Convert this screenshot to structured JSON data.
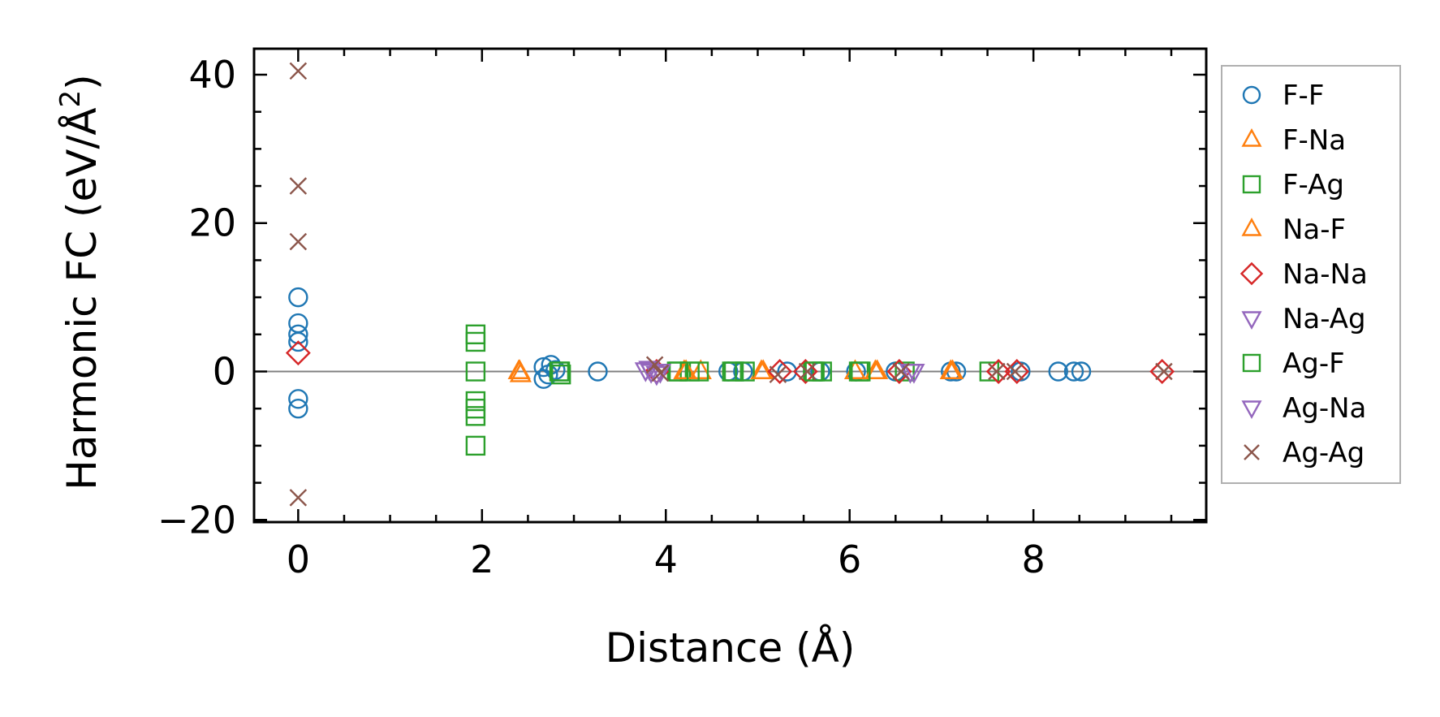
{
  "chart_data": {
    "type": "scatter",
    "title": "",
    "xlabel": "Distance (Å)",
    "ylabel_main": "Harmonic FC (eV/Å",
    "ylabel_sup": "2",
    "ylabel_close": ")",
    "xlim": [
      -0.48,
      9.88
    ],
    "ylim": [
      -20.3,
      43.5
    ],
    "xticks": [
      0,
      2,
      4,
      6,
      8
    ],
    "xtick_labels": [
      "0",
      "2",
      "4",
      "6",
      "8"
    ],
    "yticks": [
      -20,
      0,
      20,
      40
    ],
    "ytick_labels": [
      "−20",
      "0",
      "20",
      "40"
    ],
    "grid": false,
    "zero_line": 0,
    "legend_position": "outside-right",
    "colors": {
      "blue": "#1f77b4",
      "orange": "#ff7f0e",
      "green": "#2ca02c",
      "red": "#d62728",
      "purple": "#9467bd",
      "brown": "#8c564b",
      "zero_line": "#808080"
    },
    "series": [
      {
        "name": "F-F",
        "marker": "circle",
        "color": "#1f77b4",
        "x": [
          0,
          0,
          0,
          0,
          0,
          0,
          2.67,
          2.67,
          2.72,
          2.75,
          2.8,
          3.26,
          4.68,
          4.84,
          5.32,
          5.68,
          6.07,
          6.5,
          7.1,
          7.16,
          7.86,
          8.27,
          8.44,
          8.52
        ],
        "y": [
          10,
          6.5,
          5,
          4,
          -3.7,
          -5,
          -1,
          0.6,
          -0.4,
          0.9,
          0.2,
          0,
          0,
          0,
          0,
          0,
          0,
          0,
          0,
          0,
          0,
          0,
          0,
          0
        ]
      },
      {
        "name": "F-Na",
        "marker": "triangle-up",
        "color": "#ff7f0e",
        "x": [
          2.4,
          2.42,
          4.2,
          4.38,
          5.04,
          6.06,
          6.3,
          7.1
        ],
        "y": [
          0,
          -0.4,
          0,
          0,
          0,
          0,
          0,
          0
        ]
      },
      {
        "name": "F-Ag",
        "marker": "square",
        "color": "#2ca02c",
        "x": [
          1.93,
          1.93,
          1.93,
          1.93,
          1.93,
          1.93,
          2.84,
          2.86,
          4.12,
          4.26,
          4.36,
          4.72,
          4.86,
          5.6,
          5.7,
          6.1,
          6.6,
          7.52
        ],
        "y": [
          5,
          4,
          -4,
          -5,
          -6,
          -10,
          0,
          -0.4,
          0,
          0,
          0,
          0,
          0,
          0,
          0,
          0,
          0,
          0
        ]
      },
      {
        "name": "Na-F",
        "marker": "triangle-up",
        "color": "#ff7f0e",
        "x": [
          2.41,
          4.22,
          5.06,
          6.28,
          7.12
        ],
        "y": [
          0,
          0,
          0,
          0,
          0
        ]
      },
      {
        "name": "Na-Na",
        "marker": "diamond",
        "color": "#d62728",
        "x": [
          0,
          3.9,
          5.24,
          5.52,
          6.54,
          7.62,
          7.82,
          9.4
        ],
        "y": [
          2.5,
          0,
          0,
          0,
          0,
          0,
          0,
          0
        ]
      },
      {
        "name": "Na-Ag",
        "marker": "triangle-down",
        "color": "#9467bd",
        "x": [
          3.78,
          3.84,
          3.9,
          6.7
        ],
        "y": [
          0.2,
          0,
          -0.3,
          0
        ]
      },
      {
        "name": "Ag-F",
        "marker": "square",
        "color": "#2ca02c",
        "x": [
          1.93,
          2.85,
          4.14,
          4.74,
          5.62,
          6.12
        ],
        "y": [
          0,
          0,
          0,
          0,
          0,
          0
        ]
      },
      {
        "name": "Ag-Na",
        "marker": "triangle-down",
        "color": "#9467bd",
        "x": [
          3.82,
          3.94,
          6.66
        ],
        "y": [
          0.4,
          0,
          0
        ]
      },
      {
        "name": "Ag-Ag",
        "marker": "x",
        "color": "#8c564b",
        "x": [
          0,
          0,
          0,
          0,
          3.88,
          3.94,
          5.22,
          5.54,
          6.56,
          7.6,
          7.8,
          9.42
        ],
        "y": [
          40.5,
          25,
          17.5,
          -17,
          0.9,
          -0.2,
          -0.4,
          0,
          0,
          0,
          0,
          0
        ]
      }
    ]
  }
}
